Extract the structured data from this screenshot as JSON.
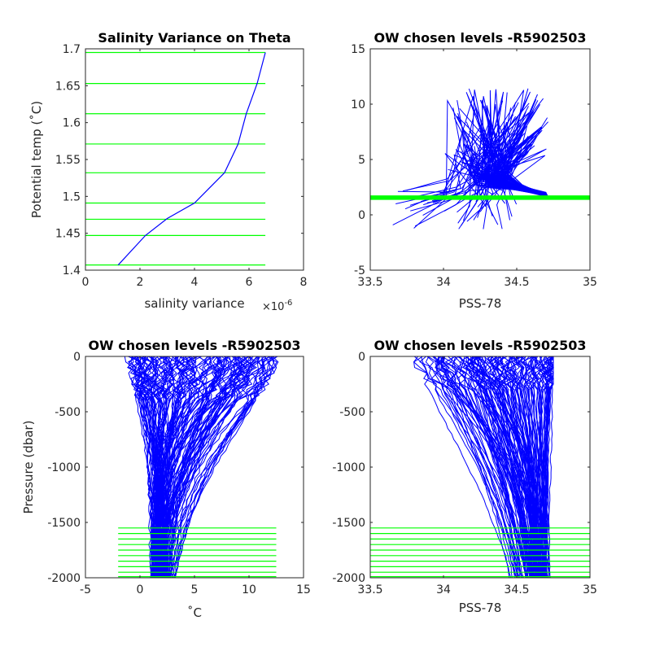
{
  "chart_data": [
    {
      "type": "line",
      "title": "Salinity Variance on Theta",
      "xlabel": "salinity variance",
      "x_multiplier": "×10",
      "x_multiplier_exp": "-6",
      "ylabel": "Potential temp (˚C)",
      "xlim": [
        0,
        8
      ],
      "ylim": [
        1.4,
        1.7
      ],
      "xticks": [
        "0",
        "2",
        "4",
        "6",
        "8"
      ],
      "yticks": [
        "1.4",
        "1.45",
        "1.5",
        "1.55",
        "1.6",
        "1.65",
        "1.7"
      ],
      "series": [
        {
          "color": "#0000ff",
          "x": [
            1.2,
            2.2,
            3.0,
            4.0,
            5.1,
            5.6,
            5.9,
            6.3,
            6.6
          ],
          "y": [
            1.407,
            1.447,
            1.47,
            1.491,
            1.532,
            1.571,
            1.612,
            1.653,
            1.695
          ]
        }
      ],
      "chosen_levels": {
        "color": "#00ff00",
        "x_range": [
          0,
          6.6
        ],
        "y": [
          1.407,
          1.447,
          1.469,
          1.491,
          1.532,
          1.571,
          1.612,
          1.653,
          1.695
        ]
      }
    },
    {
      "type": "line",
      "title": "OW chosen levels -R5902503",
      "xlabel": "PSS-78",
      "ylabel": "",
      "xlim": [
        33.5,
        35
      ],
      "ylim": [
        -5,
        15
      ],
      "xticks": [
        "33.5",
        "34",
        "34.5",
        "35"
      ],
      "yticks": [
        "-5",
        "0",
        "5",
        "10",
        "15"
      ],
      "profiles_color": "#0000ff",
      "chosen_levels": {
        "color": "#00ff00",
        "y": [
          1.41,
          1.45,
          1.47,
          1.49,
          1.53,
          1.57,
          1.61,
          1.65,
          1.7
        ]
      }
    },
    {
      "type": "line",
      "title": "OW chosen levels -R5902503",
      "xlabel": "˚C",
      "ylabel": "Pressure (dbar)",
      "xlim": [
        -5,
        15
      ],
      "ylim": [
        -2000,
        0
      ],
      "xticks": [
        "-5",
        "0",
        "5",
        "10",
        "15"
      ],
      "yticks": [
        "-2000",
        "-1500",
        "-1000",
        "-500",
        "0"
      ],
      "profiles_color": "#0000ff",
      "chosen_levels": {
        "color": "#00ff00",
        "x_range": [
          -2,
          12.5
        ],
        "y": [
          -1550,
          -1600,
          -1650,
          -1700,
          -1750,
          -1800,
          -1850,
          -1900,
          -1950,
          -1990
        ]
      }
    },
    {
      "type": "line",
      "title": "OW chosen levels -R5902503",
      "xlabel": "PSS-78",
      "ylabel": "",
      "xlim": [
        33.5,
        35
      ],
      "ylim": [
        -2000,
        0
      ],
      "xticks": [
        "33.5",
        "34",
        "34.5",
        "35"
      ],
      "yticks": [
        "-2000",
        "-1500",
        "-1000",
        "-500",
        "0"
      ],
      "profiles_color": "#0000ff",
      "chosen_levels": {
        "color": "#00ff00",
        "x_range": [
          33.5,
          35
        ],
        "y": [
          -1550,
          -1600,
          -1650,
          -1700,
          -1750,
          -1800,
          -1850,
          -1900,
          -1950,
          -1990
        ]
      }
    }
  ]
}
